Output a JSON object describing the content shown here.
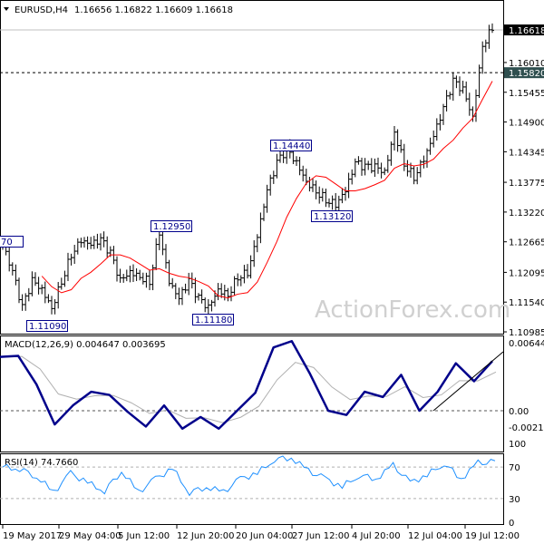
{
  "header": {
    "symbol": "EURUSD,H4",
    "ohlc": "1.16656 1.16822 1.16609 1.16618"
  },
  "watermark": "ActionForex.com",
  "chart_data": [
    {
      "type": "line",
      "title": "EURUSD,H4",
      "yticks": [
        "1.16010",
        "1.15455",
        "1.14900",
        "1.14345",
        "1.13775",
        "1.13220",
        "1.12665",
        "1.12095",
        "1.11540",
        "1.10985"
      ],
      "current_price": "1.16618",
      "level_line": "1.15820",
      "ylim": [
        1.10985,
        1.16618
      ],
      "closes": [
        1.1261,
        1.121,
        1.1143,
        1.1193,
        1.1177,
        1.1143,
        1.1193,
        1.1244,
        1.127,
        1.1261,
        1.127,
        1.1244,
        1.1193,
        1.121,
        1.1202,
        1.1193,
        1.1286,
        1.1193,
        1.116,
        1.1193,
        1.116,
        1.1143,
        1.1177,
        1.1168,
        1.1202,
        1.121,
        1.1278,
        1.1362,
        1.1413,
        1.1439,
        1.1413,
        1.1379,
        1.1362,
        1.1346,
        1.1337,
        1.1362,
        1.1413,
        1.1405,
        1.1405,
        1.1396,
        1.1472,
        1.1413,
        1.1388,
        1.1422,
        1.1464,
        1.1515,
        1.1565,
        1.1549,
        1.1498,
        1.1633,
        1.1667
      ],
      "annotations": [
        "1.12950",
        "1.11090",
        "1.11180",
        "1.14440",
        "1.13120",
        "70"
      ],
      "xticks": [
        "19 May 2017",
        "29 May 04:00",
        "5 Jun 12:00",
        "12 Jun 20:00",
        "20 Jun 04:00",
        "27 Jun 12:00",
        "4 Jul 20:00",
        "12 Jul 04:00",
        "19 Jul 12:00"
      ],
      "ma_color": "#ff0000"
    },
    {
      "type": "line",
      "title": "MACD(12,26,9) 0.004647 0.003695",
      "yticks": [
        "0.006449",
        "0.00",
        "-0.002134"
      ],
      "ylim": [
        -0.002134,
        0.006449
      ],
      "macd": [
        0.0051,
        0.0052,
        0.0025,
        -0.0013,
        0.0005,
        0.0018,
        0.0015,
        -0.0001,
        -0.0015,
        0.0005,
        -0.0017,
        -0.0006,
        -0.0017,
        0.0,
        0.0017,
        0.006,
        0.0066,
        0.0035,
        0.0,
        -0.0004,
        0.0018,
        0.0013,
        0.0034,
        0.0,
        0.0018,
        0.0045,
        0.0028,
        0.0047
      ],
      "macd_color": "#00008b",
      "signal_color": "#b0b0b0"
    },
    {
      "type": "line",
      "title": "RSI(14) 74.7660",
      "yticks": [
        "100",
        "70",
        "30",
        "0"
      ],
      "ylim": [
        0,
        100
      ],
      "values": [
        70,
        68,
        58,
        38,
        62,
        50,
        40,
        65,
        38,
        55,
        68,
        38,
        45,
        38,
        55,
        62,
        80,
        82,
        65,
        55,
        45,
        60,
        55,
        72,
        50,
        60,
        75,
        55,
        75,
        76
      ],
      "color": "#1e90ff"
    }
  ]
}
